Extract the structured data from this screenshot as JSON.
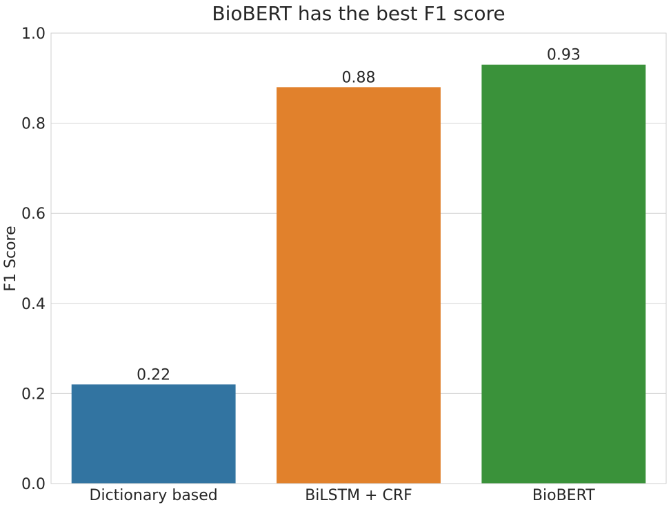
{
  "chart_data": {
    "type": "bar",
    "title": "BioBERT has the best F1 score",
    "xlabel": "",
    "ylabel": "F1 Score",
    "categories": [
      "Dictionary based",
      "BiLSTM + CRF",
      "BioBERT"
    ],
    "values": [
      0.22,
      0.88,
      0.93
    ],
    "value_labels": [
      "0.22",
      "0.88",
      "0.93"
    ],
    "colors": [
      "#3274a1",
      "#e1812c",
      "#3a923a"
    ],
    "ylim": [
      0,
      1.0
    ],
    "yticks": [
      "0.0",
      "0.2",
      "0.4",
      "0.6",
      "0.8",
      "1.0"
    ],
    "grid": true,
    "legend": "none"
  }
}
